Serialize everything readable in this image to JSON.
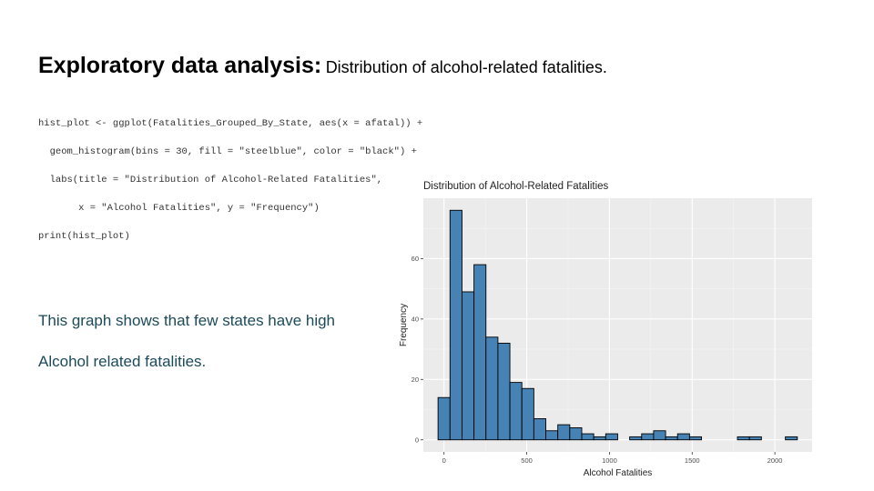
{
  "slide": {
    "title_bold": "Exploratory data analysis:",
    "title_rest": "Distribution of alcohol-related fatalities.",
    "code_lines": [
      "hist_plot <- ggplot(Fatalities_Grouped_By_State, aes(x = afatal)) +",
      "  geom_histogram(bins = 30, fill = \"steelblue\", color = \"black\") +",
      "  labs(title = \"Distribution of Alcohol-Related Fatalities\",",
      "       x = \"Alcohol Fatalities\", y = \"Frequency\")",
      "print(hist_plot)"
    ],
    "description_lines": [
      "This graph shows that few states have high",
      "Alcohol related fatalities."
    ],
    "colors": {
      "description_text": "#1b4a5a",
      "bar_fill": "#4682b4",
      "panel_bg": "#ebebeb"
    }
  },
  "chart_data": {
    "type": "bar",
    "title": "Distribution of Alcohol-Related Fatalities",
    "xlabel": "Alcohol Fatalities",
    "ylabel": "Frequency",
    "bin_width": 72.4,
    "bin_centers": [
      0,
      72.4,
      144.8,
      217.2,
      289.6,
      362,
      434.4,
      506.8,
      579.2,
      651.6,
      724,
      796.4,
      868.8,
      941.2,
      1013.6,
      1086,
      1158.4,
      1230.8,
      1303.2,
      1375.6,
      1448,
      1520.4,
      1592.8,
      1665.2,
      1737.6,
      1810,
      1882.4,
      1954.8,
      2027.2,
      2099.6
    ],
    "values": [
      14,
      76,
      49,
      58,
      34,
      32,
      19,
      17,
      7,
      3,
      5,
      4,
      2,
      1,
      2,
      0,
      1,
      2,
      3,
      1,
      2,
      1,
      0,
      0,
      0,
      1,
      1,
      0,
      0,
      1
    ],
    "xlim": [
      -125,
      2225
    ],
    "ylim": [
      -4,
      80
    ],
    "x_ticks": [
      0,
      500,
      1000,
      1500,
      2000
    ],
    "y_ticks": [
      0,
      20,
      40,
      60
    ],
    "grid": true,
    "legend": "none"
  }
}
